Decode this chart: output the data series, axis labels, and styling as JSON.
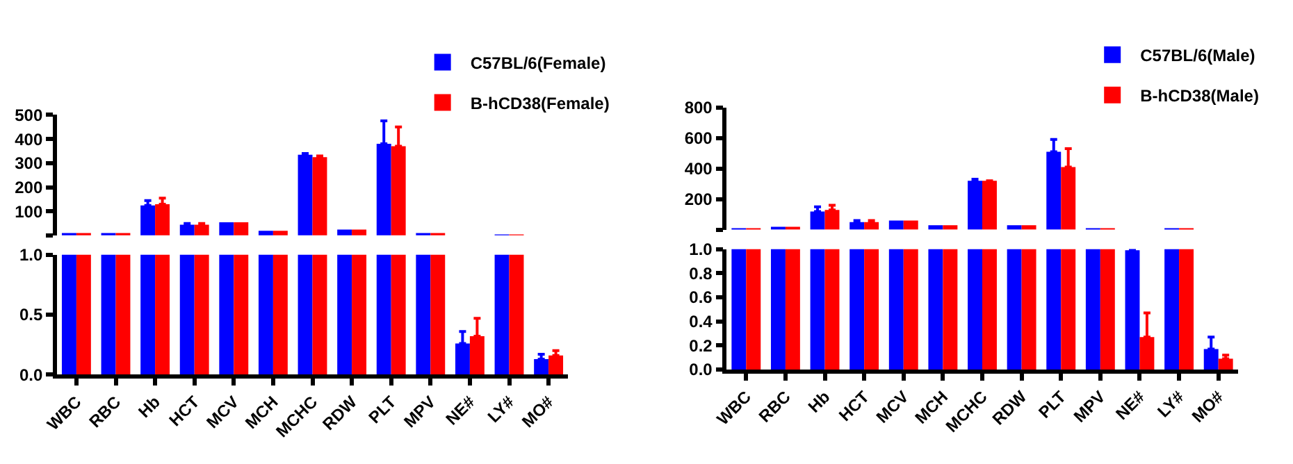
{
  "chart_data": [
    {
      "type": "bar",
      "categories": [
        "WBC",
        "RBC",
        "Hb",
        "HCT",
        "MCV",
        "MCH",
        "MCHC",
        "RDW",
        "PLT",
        "MPV",
        "NE#",
        "LY#",
        "MO#"
      ],
      "series": [
        {
          "name": "C57BL/6(Female)",
          "color": "#0000ff",
          "values": [
            10,
            10,
            125,
            45,
            55,
            20,
            335,
            25,
            380,
            10,
            null,
            5,
            null
          ],
          "errors": [
            null,
            null,
            [
              125,
              145
            ],
            [
              45,
              50
            ],
            null,
            null,
            [
              335,
              340
            ],
            null,
            [
              380,
              475
            ],
            null,
            null,
            null,
            null
          ]
        },
        {
          "name": "B-hCD38(Female)",
          "color": "#ff0000",
          "values": [
            10,
            10,
            130,
            45,
            55,
            20,
            325,
            25,
            370,
            10,
            null,
            5,
            null
          ],
          "errors": [
            null,
            null,
            [
              130,
              155
            ],
            [
              45,
              50
            ],
            null,
            null,
            [
              325,
              330
            ],
            null,
            [
              370,
              450
            ],
            null,
            null,
            null,
            null
          ]
        }
      ],
      "ylim": [
        1,
        500
      ],
      "yticks": [
        {
          "value": 1,
          "label": null
        },
        100,
        200,
        300,
        400,
        500
      ],
      "tick_labels": "y",
      "legend": "top right"
    },
    {
      "type": "bar",
      "categories": [
        "WBC",
        "RBC",
        "Hb",
        "HCT",
        "MCV",
        "MCH",
        "MCHC",
        "RDW",
        "PLT",
        "MPV",
        "NE#",
        "LY#",
        "MO#"
      ],
      "series": [
        {
          "color": "#0000ff",
          "values": [
            1,
            1,
            1,
            1,
            1,
            1,
            1,
            1,
            1,
            1,
            0.26,
            1,
            0.13
          ],
          "errors": [
            null,
            null,
            null,
            null,
            null,
            null,
            null,
            null,
            null,
            null,
            [
              0.26,
              0.36
            ],
            null,
            [
              0.13,
              0.17
            ]
          ]
        },
        {
          "color": "#ff0000",
          "values": [
            1,
            1,
            1,
            1,
            1,
            1,
            1,
            1,
            1,
            1,
            0.32,
            1,
            0.16
          ],
          "errors": [
            null,
            null,
            null,
            null,
            null,
            null,
            null,
            null,
            null,
            null,
            [
              0.32,
              0.47
            ],
            null,
            [
              0.16,
              0.2
            ]
          ]
        }
      ],
      "ylim": [
        0,
        1
      ],
      "yticks": [
        {
          "value": 0,
          "label": "0.0"
        },
        {
          "value": 0.5,
          "label": "0.5"
        },
        {
          "value": 1,
          "label": "1.0"
        }
      ]
    },
    {
      "type": "bar",
      "categories": [
        "WBC",
        "RBC",
        "Hb",
        "HCT",
        "MCV",
        "MCH",
        "MCHC",
        "RDW",
        "PLT",
        "MPV",
        "NE#",
        "LY#",
        "MO#"
      ],
      "series": [
        {
          "name": "C57BL/6(Male)",
          "color": "#0000ff",
          "values": [
            10,
            20,
            120,
            50,
            60,
            30,
            320,
            30,
            510,
            10,
            null,
            10,
            null
          ],
          "errors": [
            null,
            null,
            [
              120,
              150
            ],
            [
              50,
              60
            ],
            null,
            null,
            [
              320,
              330
            ],
            null,
            [
              510,
              590
            ],
            null,
            null,
            null,
            null
          ]
        },
        {
          "name": "B-hCD38(Male)",
          "color": "#ff0000",
          "values": [
            10,
            20,
            130,
            50,
            60,
            30,
            320,
            30,
            410,
            10,
            null,
            10,
            null
          ],
          "errors": [
            null,
            null,
            [
              130,
              160
            ],
            [
              50,
              60
            ],
            null,
            null,
            [
              320,
              320
            ],
            null,
            [
              410,
              530
            ],
            null,
            null,
            null,
            null
          ]
        }
      ],
      "ylim": [
        1,
        800
      ],
      "yticks": [
        {
          "value": 1,
          "label": null
        },
        200,
        400,
        600,
        800
      ],
      "tick_labels": "y",
      "legend": "top right"
    },
    {
      "type": "bar",
      "categories": [
        "WBC",
        "RBC",
        "Hb",
        "HCT",
        "MCV",
        "MCH",
        "MCHC",
        "RDW",
        "PLT",
        "MPV",
        "NE#",
        "LY#",
        "MO#"
      ],
      "series": [
        {
          "color": "#0000ff",
          "values": [
            1,
            1,
            1,
            1,
            1,
            1,
            1,
            1,
            1,
            1,
            0.99,
            1,
            0.17
          ],
          "errors": [
            null,
            null,
            null,
            null,
            null,
            null,
            null,
            null,
            null,
            null,
            [
              0.99,
              1.0
            ],
            null,
            [
              0.17,
              0.27
            ]
          ]
        },
        {
          "color": "#ff0000",
          "values": [
            1,
            1,
            1,
            1,
            1,
            1,
            1,
            1,
            1,
            1,
            0.27,
            1,
            0.09
          ],
          "errors": [
            null,
            null,
            null,
            null,
            null,
            null,
            null,
            null,
            null,
            null,
            [
              0.27,
              0.47
            ],
            null,
            [
              0.09,
              0.12
            ]
          ]
        }
      ],
      "ylim": [
        0,
        1
      ],
      "yticks": [
        {
          "value": 0,
          "label": "0.0"
        },
        {
          "value": 0.2,
          "label": "0.2"
        },
        {
          "value": 0.4,
          "label": "0.4"
        },
        {
          "value": 0.6,
          "label": "0.6"
        },
        {
          "value": 0.8,
          "label": "0.8"
        },
        {
          "value": 1,
          "label": "1.0"
        }
      ]
    }
  ]
}
